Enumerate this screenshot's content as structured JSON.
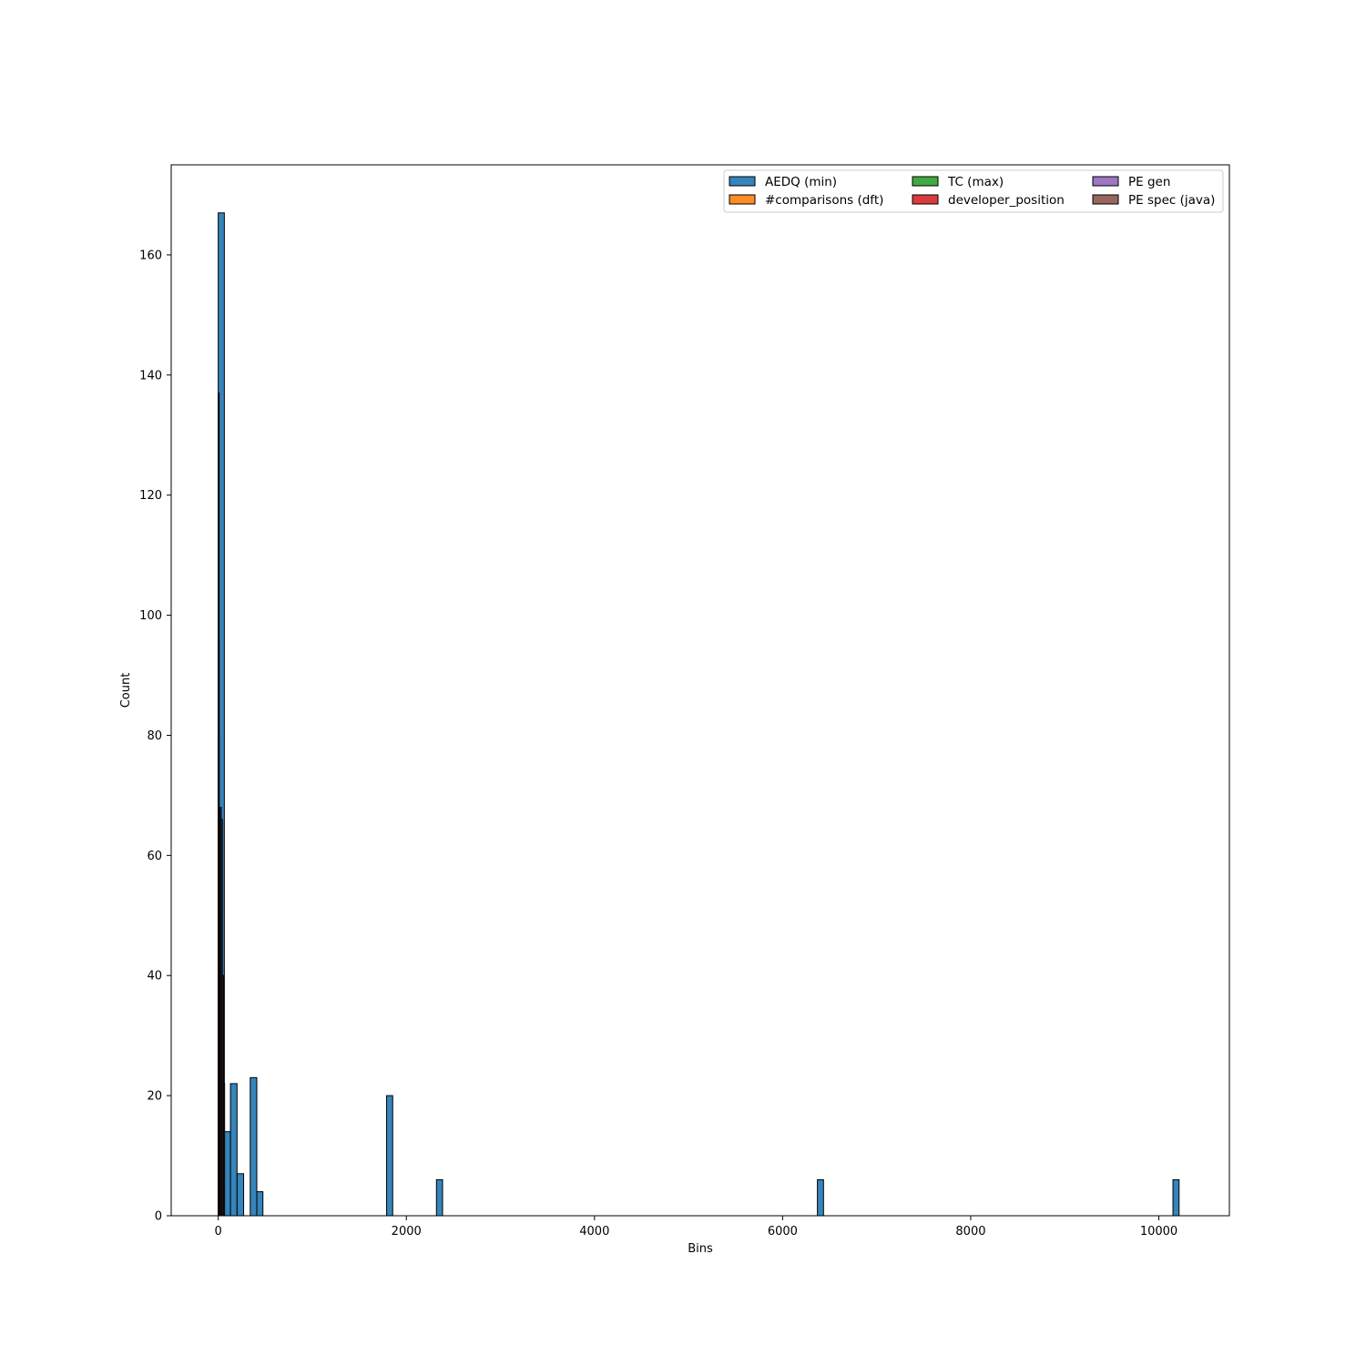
{
  "chart_data": {
    "type": "bar",
    "subtype": "histogram",
    "xlabel": "Bins",
    "ylabel": "Count",
    "xlim": [
      -500,
      10750
    ],
    "ylim": [
      0,
      175
    ],
    "grid": false,
    "legend_position": "top-right",
    "legend_columns": 3,
    "xticks": [
      0,
      2000,
      4000,
      6000,
      8000,
      10000
    ],
    "yticks": [
      0,
      20,
      40,
      60,
      80,
      100,
      120,
      140,
      160
    ],
    "series": [
      {
        "name": "AEDQ (min)",
        "color": "#1f77b4",
        "bins": [
          {
            "x0": 0,
            "x1": 65,
            "count": 167
          },
          {
            "x0": 65,
            "x1": 130,
            "count": 14
          },
          {
            "x0": 130,
            "x1": 200,
            "count": 22
          },
          {
            "x0": 200,
            "x1": 270,
            "count": 7
          },
          {
            "x0": 340,
            "x1": 410,
            "count": 23
          },
          {
            "x0": 410,
            "x1": 475,
            "count": 4
          },
          {
            "x0": 1790,
            "x1": 1855,
            "count": 20
          },
          {
            "x0": 2320,
            "x1": 2385,
            "count": 6
          },
          {
            "x0": 6370,
            "x1": 6435,
            "count": 6
          },
          {
            "x0": 10150,
            "x1": 10215,
            "count": 6
          }
        ]
      },
      {
        "name": "#comparisons (dft)",
        "color": "#ff7f0e",
        "bins": [
          {
            "x0": 0,
            "x1": 8,
            "count": 137
          },
          {
            "x0": 8,
            "x1": 16,
            "count": 58
          },
          {
            "x0": 16,
            "x1": 24,
            "count": 30
          },
          {
            "x0": 24,
            "x1": 32,
            "count": 22
          },
          {
            "x0": 32,
            "x1": 40,
            "count": 14
          },
          {
            "x0": 40,
            "x1": 48,
            "count": 8
          }
        ]
      },
      {
        "name": "TC (max)",
        "color": "#2ca02c",
        "bins": [
          {
            "x0": 0,
            "x1": 6,
            "count": 96
          },
          {
            "x0": 6,
            "x1": 12,
            "count": 60
          },
          {
            "x0": 12,
            "x1": 18,
            "count": 40
          },
          {
            "x0": 18,
            "x1": 24,
            "count": 25
          },
          {
            "x0": 24,
            "x1": 30,
            "count": 12
          }
        ]
      },
      {
        "name": "developer_position",
        "color": "#d62728",
        "bins": [
          {
            "x0": 0,
            "x1": 5,
            "count": 50
          },
          {
            "x0": 5,
            "x1": 10,
            "count": 45
          },
          {
            "x0": 10,
            "x1": 15,
            "count": 40
          },
          {
            "x0": 15,
            "x1": 20,
            "count": 35
          },
          {
            "x0": 20,
            "x1": 25,
            "count": 30
          }
        ]
      },
      {
        "name": "PE gen",
        "color": "#9467bd",
        "bins": [
          {
            "x0": 0,
            "x1": 10,
            "count": 80
          },
          {
            "x0": 10,
            "x1": 20,
            "count": 66
          },
          {
            "x0": 20,
            "x1": 30,
            "count": 50
          },
          {
            "x0": 30,
            "x1": 40,
            "count": 30
          },
          {
            "x0": 40,
            "x1": 50,
            "count": 18
          }
        ]
      },
      {
        "name": "PE spec (java)",
        "color": "#8c564b",
        "bins": [
          {
            "x0": 20,
            "x1": 32,
            "count": 68
          },
          {
            "x0": 32,
            "x1": 44,
            "count": 66
          },
          {
            "x0": 44,
            "x1": 56,
            "count": 40
          },
          {
            "x0": 56,
            "x1": 68,
            "count": 22
          }
        ]
      }
    ]
  }
}
